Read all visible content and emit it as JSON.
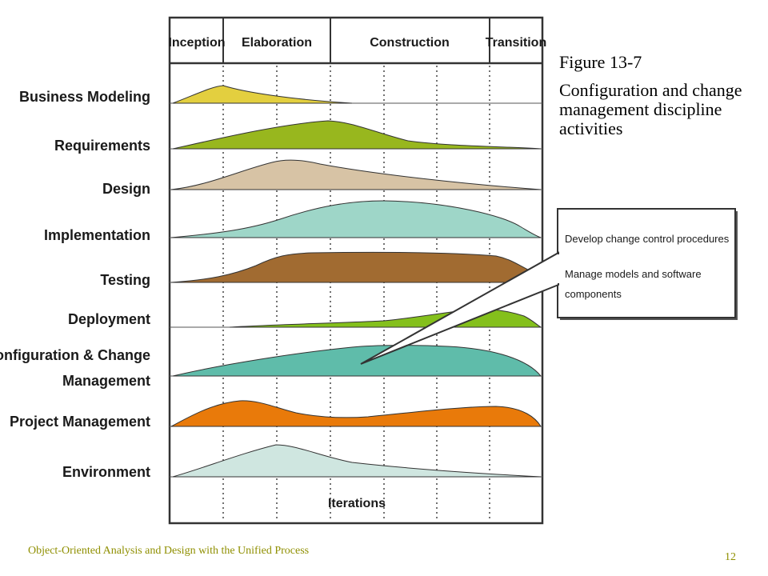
{
  "phases": [
    "Inception",
    "Elaboration",
    "Construction",
    "Transition"
  ],
  "disciplines": [
    {
      "label_lines": [
        "Business Modeling"
      ],
      "color": "#e3cf3f"
    },
    {
      "label_lines": [
        "Requirements"
      ],
      "color": "#98b71e"
    },
    {
      "label_lines": [
        "Design"
      ],
      "color": "#d7c3a5"
    },
    {
      "label_lines": [
        "Implementation"
      ],
      "color": "#9ed6c8"
    },
    {
      "label_lines": [
        "Testing"
      ],
      "color": "#a16b31"
    },
    {
      "label_lines": [
        "Deployment"
      ],
      "color": "#84c01c"
    },
    {
      "label_lines": [
        "Configuration & Change",
        "Management"
      ],
      "color": "#5fbcaa"
    },
    {
      "label_lines": [
        "Project Management"
      ],
      "color": "#e97a0a"
    },
    {
      "label_lines": [
        "Environment"
      ],
      "color": "#cfe6e0"
    }
  ],
  "iterations_label": "Iterations",
  "callout": {
    "items": [
      "Develop change control procedures",
      "Manage models and software components"
    ]
  },
  "figure": {
    "number": "Figure 13-7",
    "caption": "Configuration and change management discipline activities"
  },
  "footer": {
    "course": "Object-Oriented Analysis and Design with the Unified Process",
    "page": "12"
  }
}
